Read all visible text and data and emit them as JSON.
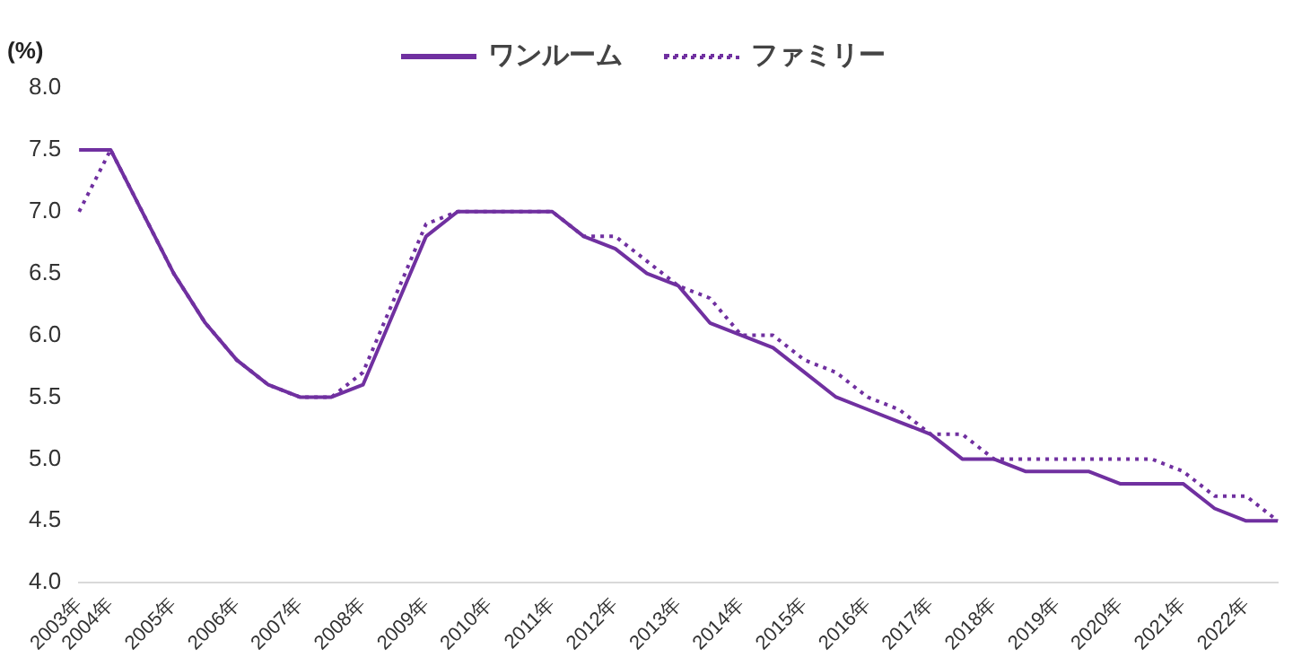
{
  "chart_data": {
    "type": "line",
    "ylabel": "(%)",
    "categories": [
      "2003年",
      "2004年",
      null,
      "2005年",
      null,
      "2006年",
      null,
      "2007年",
      null,
      "2008年",
      null,
      "2009年",
      null,
      "2010年",
      null,
      "2011年",
      null,
      "2012年",
      null,
      "2013年",
      null,
      "2014年",
      null,
      "2015年",
      null,
      "2016年",
      null,
      "2017年",
      null,
      "2018年",
      null,
      "2019年",
      null,
      "2020年",
      null,
      "2021年",
      null,
      "2022年",
      null
    ],
    "series": [
      {
        "name": "ワンルーム",
        "color": "#7030a0",
        "line_style": "solid",
        "values": [
          7.5,
          7.5,
          7.0,
          6.5,
          6.1,
          5.8,
          5.6,
          5.5,
          5.5,
          5.6,
          6.2,
          6.8,
          7.0,
          7.0,
          7.0,
          7.0,
          6.8,
          6.7,
          6.5,
          6.4,
          6.1,
          6.0,
          5.9,
          5.7,
          5.5,
          5.4,
          5.3,
          5.2,
          5.0,
          5.0,
          4.9,
          4.9,
          4.9,
          4.8,
          4.8,
          4.8,
          4.6,
          4.5,
          4.5
        ]
      },
      {
        "name": "ファミリー",
        "color": "#7030a0",
        "line_style": "dotted",
        "values": [
          7.0,
          7.5,
          7.0,
          6.5,
          6.1,
          5.8,
          5.6,
          5.5,
          5.5,
          5.7,
          6.3,
          6.9,
          7.0,
          7.0,
          7.0,
          7.0,
          6.8,
          6.8,
          6.6,
          6.4,
          6.3,
          6.0,
          6.0,
          5.8,
          5.7,
          5.5,
          5.4,
          5.2,
          5.2,
          5.0,
          5.0,
          5.0,
          5.0,
          5.0,
          5.0,
          4.9,
          4.7,
          4.7,
          4.5
        ]
      }
    ],
    "ylim": [
      4.0,
      8.0
    ],
    "yticks": [
      {
        "value": 4,
        "label": "4.0"
      },
      4.5,
      {
        "value": 5,
        "label": "5.0"
      },
      5.5,
      {
        "value": 6,
        "label": "6.0"
      },
      6.5,
      {
        "value": 7,
        "label": "7.0"
      },
      7.5,
      {
        "value": 8,
        "label": "8.0"
      }
    ],
    "grid": false,
    "legend": "top",
    "marker": "none"
  }
}
